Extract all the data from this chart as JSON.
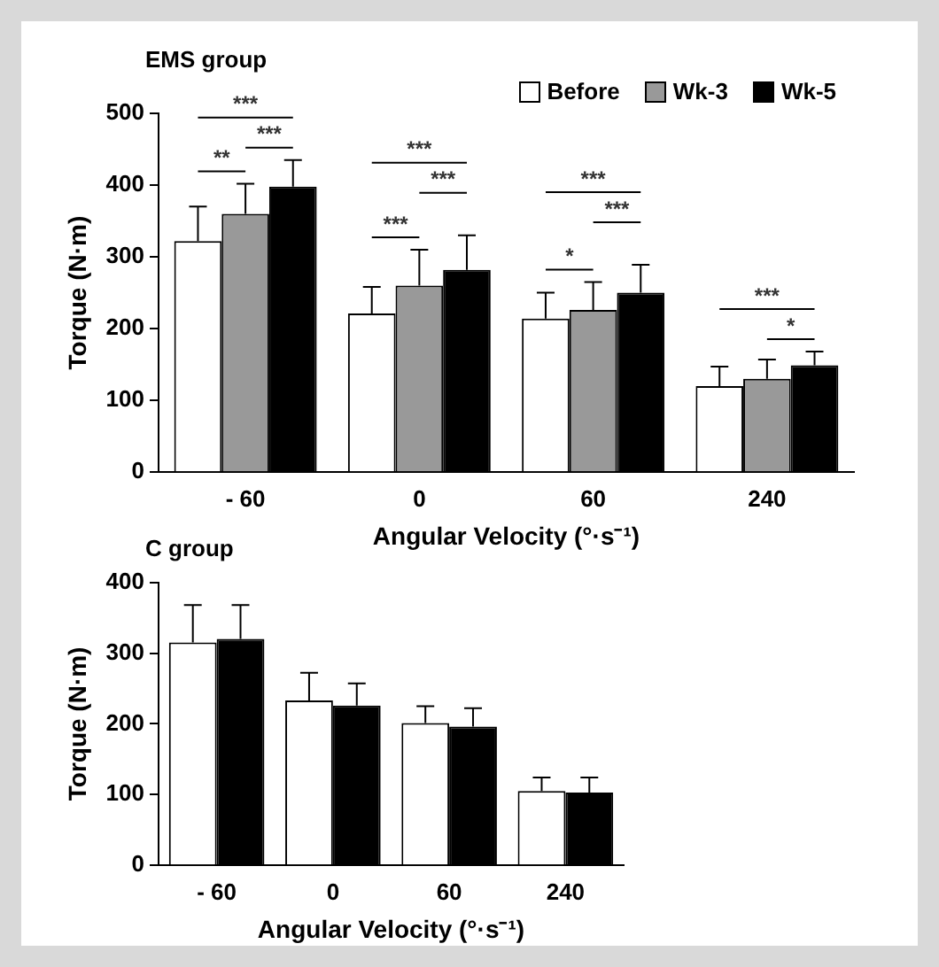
{
  "chart_data": [
    {
      "type": "bar",
      "title": "EMS group",
      "xlabel": "Angular Velocity (°·s⁻¹)",
      "ylabel": "Torque (N·m)",
      "categories": [
        "- 60",
        "0",
        "60",
        "240"
      ],
      "series": [
        {
          "name": "Before",
          "color": "#ffffff",
          "values": [
            322,
            221,
            214,
            120
          ],
          "errors": [
            48,
            37,
            36,
            27
          ]
        },
        {
          "name": "Wk-3",
          "color": "#999999",
          "values": [
            360,
            260,
            226,
            130
          ],
          "errors": [
            42,
            50,
            39,
            27
          ]
        },
        {
          "name": "Wk-5",
          "color": "#000000",
          "values": [
            398,
            282,
            250,
            149
          ],
          "errors": [
            37,
            48,
            39,
            19
          ]
        }
      ],
      "ylim": [
        0,
        500
      ],
      "yticks": [
        0,
        100,
        200,
        300,
        400,
        500
      ],
      "grid": false,
      "legend": "top right",
      "annotations": [
        "***",
        "**",
        "***",
        "***",
        "***",
        "***",
        "***",
        "*",
        "***",
        "***",
        "*"
      ]
    },
    {
      "type": "bar",
      "title": "C group",
      "xlabel": "Angular Velocity (°·s⁻¹)",
      "ylabel": "Torque (N·m)",
      "categories": [
        "- 60",
        "0",
        "60",
        "240"
      ],
      "series": [
        {
          "color": "#ffffff",
          "values": [
            315,
            233,
            201,
            105
          ],
          "errors": [
            53,
            39,
            24,
            19
          ]
        },
        {
          "color": "#000000",
          "values": [
            320,
            226,
            196,
            103
          ],
          "errors": [
            48,
            31,
            26,
            21
          ]
        }
      ],
      "ylim": [
        0,
        400
      ],
      "yticks": [
        0,
        100,
        200,
        300,
        400
      ],
      "grid": false
    }
  ]
}
